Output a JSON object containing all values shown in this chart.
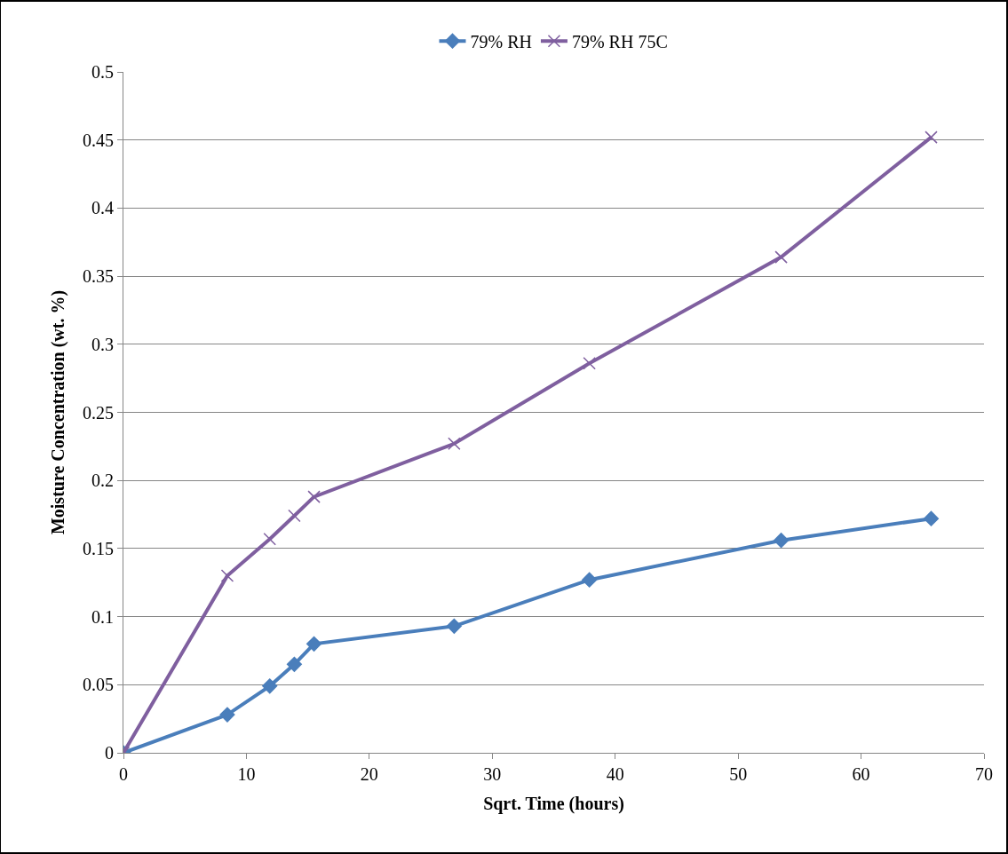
{
  "chart_data": {
    "type": "line",
    "xlabel": "Sqrt. Time (hours)",
    "ylabel": "Moisture Concentration (wt. %)",
    "xlim": [
      0,
      70
    ],
    "xticks": [
      0,
      10,
      20,
      30,
      40,
      50,
      60,
      70
    ],
    "ylim": [
      0,
      0.5
    ],
    "yticks": [
      0,
      0.05,
      0.1,
      0.15,
      0.2,
      0.25,
      0.3,
      0.35,
      0.4,
      0.45,
      0.5
    ],
    "grid": "y",
    "legend": "top",
    "line_style": "solid",
    "series": [
      {
        "name": "79% RH",
        "color": "#4a7ebb",
        "marker": "diamond",
        "x": [
          0,
          8.45,
          11.9,
          13.9,
          15.5,
          26.9,
          37.9,
          53.5,
          65.7
        ],
        "values": [
          0,
          0.028,
          0.049,
          0.065,
          0.08,
          0.093,
          0.127,
          0.156,
          0.172
        ]
      },
      {
        "name": "79% RH 75C",
        "color": "#7f5f9f",
        "marker": "cross",
        "x": [
          0,
          8.45,
          11.9,
          13.9,
          15.5,
          26.9,
          37.9,
          53.5,
          65.7
        ],
        "values": [
          0,
          0.13,
          0.157,
          0.174,
          0.188,
          0.227,
          0.286,
          0.364,
          0.452
        ]
      }
    ]
  }
}
